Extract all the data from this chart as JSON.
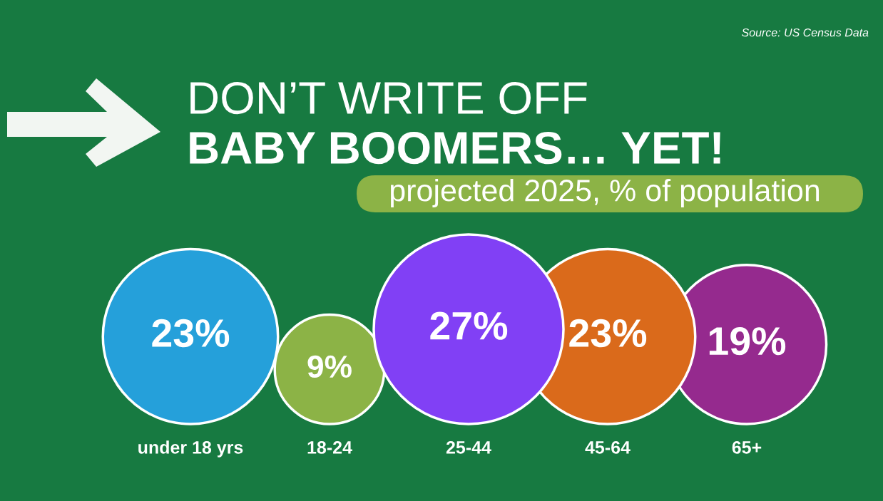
{
  "chart_data": {
    "type": "other",
    "title": "DON’T WRITE OFF\nBABY BOOMERS… YET!",
    "subtitle": "projected 2025, % of population",
    "annotations": [
      "Source: US Census Data"
    ],
    "categories": [
      "under 18 yrs",
      "18-24",
      "25-44",
      "45-64",
      "65+"
    ],
    "values": [
      23,
      9,
      27,
      23,
      19
    ],
    "value_labels": [
      "23%",
      "9%",
      "27%",
      "23%",
      "19%"
    ],
    "colors": [
      "#25a0da",
      "#8cb346",
      "#8140f5",
      "#da6a1b",
      "#952a8e"
    ]
  }
}
